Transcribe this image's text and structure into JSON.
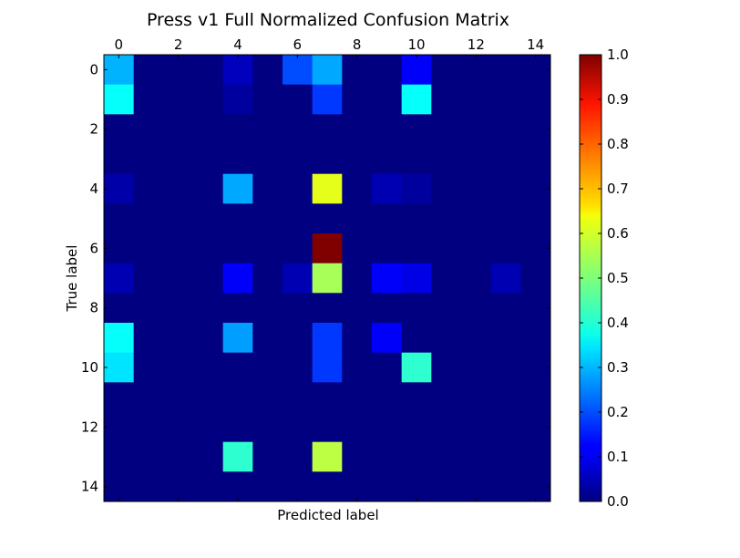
{
  "chart_data": {
    "type": "heatmap",
    "title": "Press v1 Full Normalized Confusion Matrix",
    "xlabel": "Predicted label",
    "ylabel": "True label",
    "x_ticks": [
      0,
      2,
      4,
      6,
      8,
      10,
      12,
      14
    ],
    "y_ticks": [
      0,
      2,
      4,
      6,
      8,
      10,
      12,
      14
    ],
    "xlim": [
      -0.5,
      14.5
    ],
    "ylim": [
      -0.5,
      14.5
    ],
    "x_axis_position": "top",
    "colormap": "jet",
    "colorbar": {
      "range": [
        0.0,
        1.0
      ],
      "ticks": [
        "0.0",
        "0.1",
        "0.2",
        "0.3",
        "0.4",
        "0.5",
        "0.6",
        "0.7",
        "0.8",
        "0.9",
        "1.0"
      ]
    },
    "matrix": [
      [
        0.3,
        0,
        0,
        0,
        0.06,
        0,
        0.2,
        0.29,
        0,
        0,
        0.12,
        0,
        0,
        0,
        0
      ],
      [
        0.38,
        0,
        0,
        0,
        0.03,
        0,
        0,
        0.18,
        0,
        0,
        0.38,
        0,
        0,
        0,
        0
      ],
      [
        0,
        0,
        0,
        0,
        0,
        0,
        0,
        0,
        0,
        0,
        0,
        0,
        0,
        0,
        0
      ],
      [
        0,
        0,
        0,
        0,
        0,
        0,
        0,
        0,
        0,
        0,
        0,
        0,
        0,
        0,
        0
      ],
      [
        0.04,
        0,
        0,
        0,
        0.29,
        0,
        0,
        0.6,
        0,
        0.05,
        0.03,
        0,
        0,
        0,
        0
      ],
      [
        0,
        0,
        0,
        0,
        0,
        0,
        0,
        0,
        0,
        0,
        0,
        0,
        0,
        0,
        0
      ],
      [
        0,
        0,
        0,
        0,
        0,
        0,
        0,
        1.0,
        0,
        0,
        0,
        0,
        0,
        0,
        0
      ],
      [
        0.05,
        0,
        0,
        0,
        0.12,
        0,
        0.05,
        0.54,
        0,
        0.12,
        0.1,
        0,
        0,
        0.05,
        0
      ],
      [
        0,
        0,
        0,
        0,
        0,
        0,
        0,
        0,
        0,
        0,
        0,
        0,
        0,
        0,
        0
      ],
      [
        0.38,
        0,
        0,
        0,
        0.28,
        0,
        0,
        0.18,
        0,
        0.12,
        0,
        0,
        0,
        0,
        0
      ],
      [
        0.35,
        0,
        0,
        0,
        0,
        0,
        0,
        0.18,
        0,
        0,
        0.42,
        0,
        0,
        0,
        0
      ],
      [
        0,
        0,
        0,
        0,
        0,
        0,
        0,
        0,
        0,
        0,
        0,
        0,
        0,
        0,
        0
      ],
      [
        0,
        0,
        0,
        0,
        0,
        0,
        0,
        0,
        0,
        0,
        0,
        0,
        0,
        0,
        0
      ],
      [
        0,
        0,
        0,
        0,
        0.42,
        0,
        0,
        0.56,
        0,
        0,
        0,
        0,
        0,
        0,
        0
      ],
      [
        0,
        0,
        0,
        0,
        0,
        0,
        0,
        0,
        0,
        0,
        0,
        0,
        0,
        0,
        0
      ]
    ]
  }
}
